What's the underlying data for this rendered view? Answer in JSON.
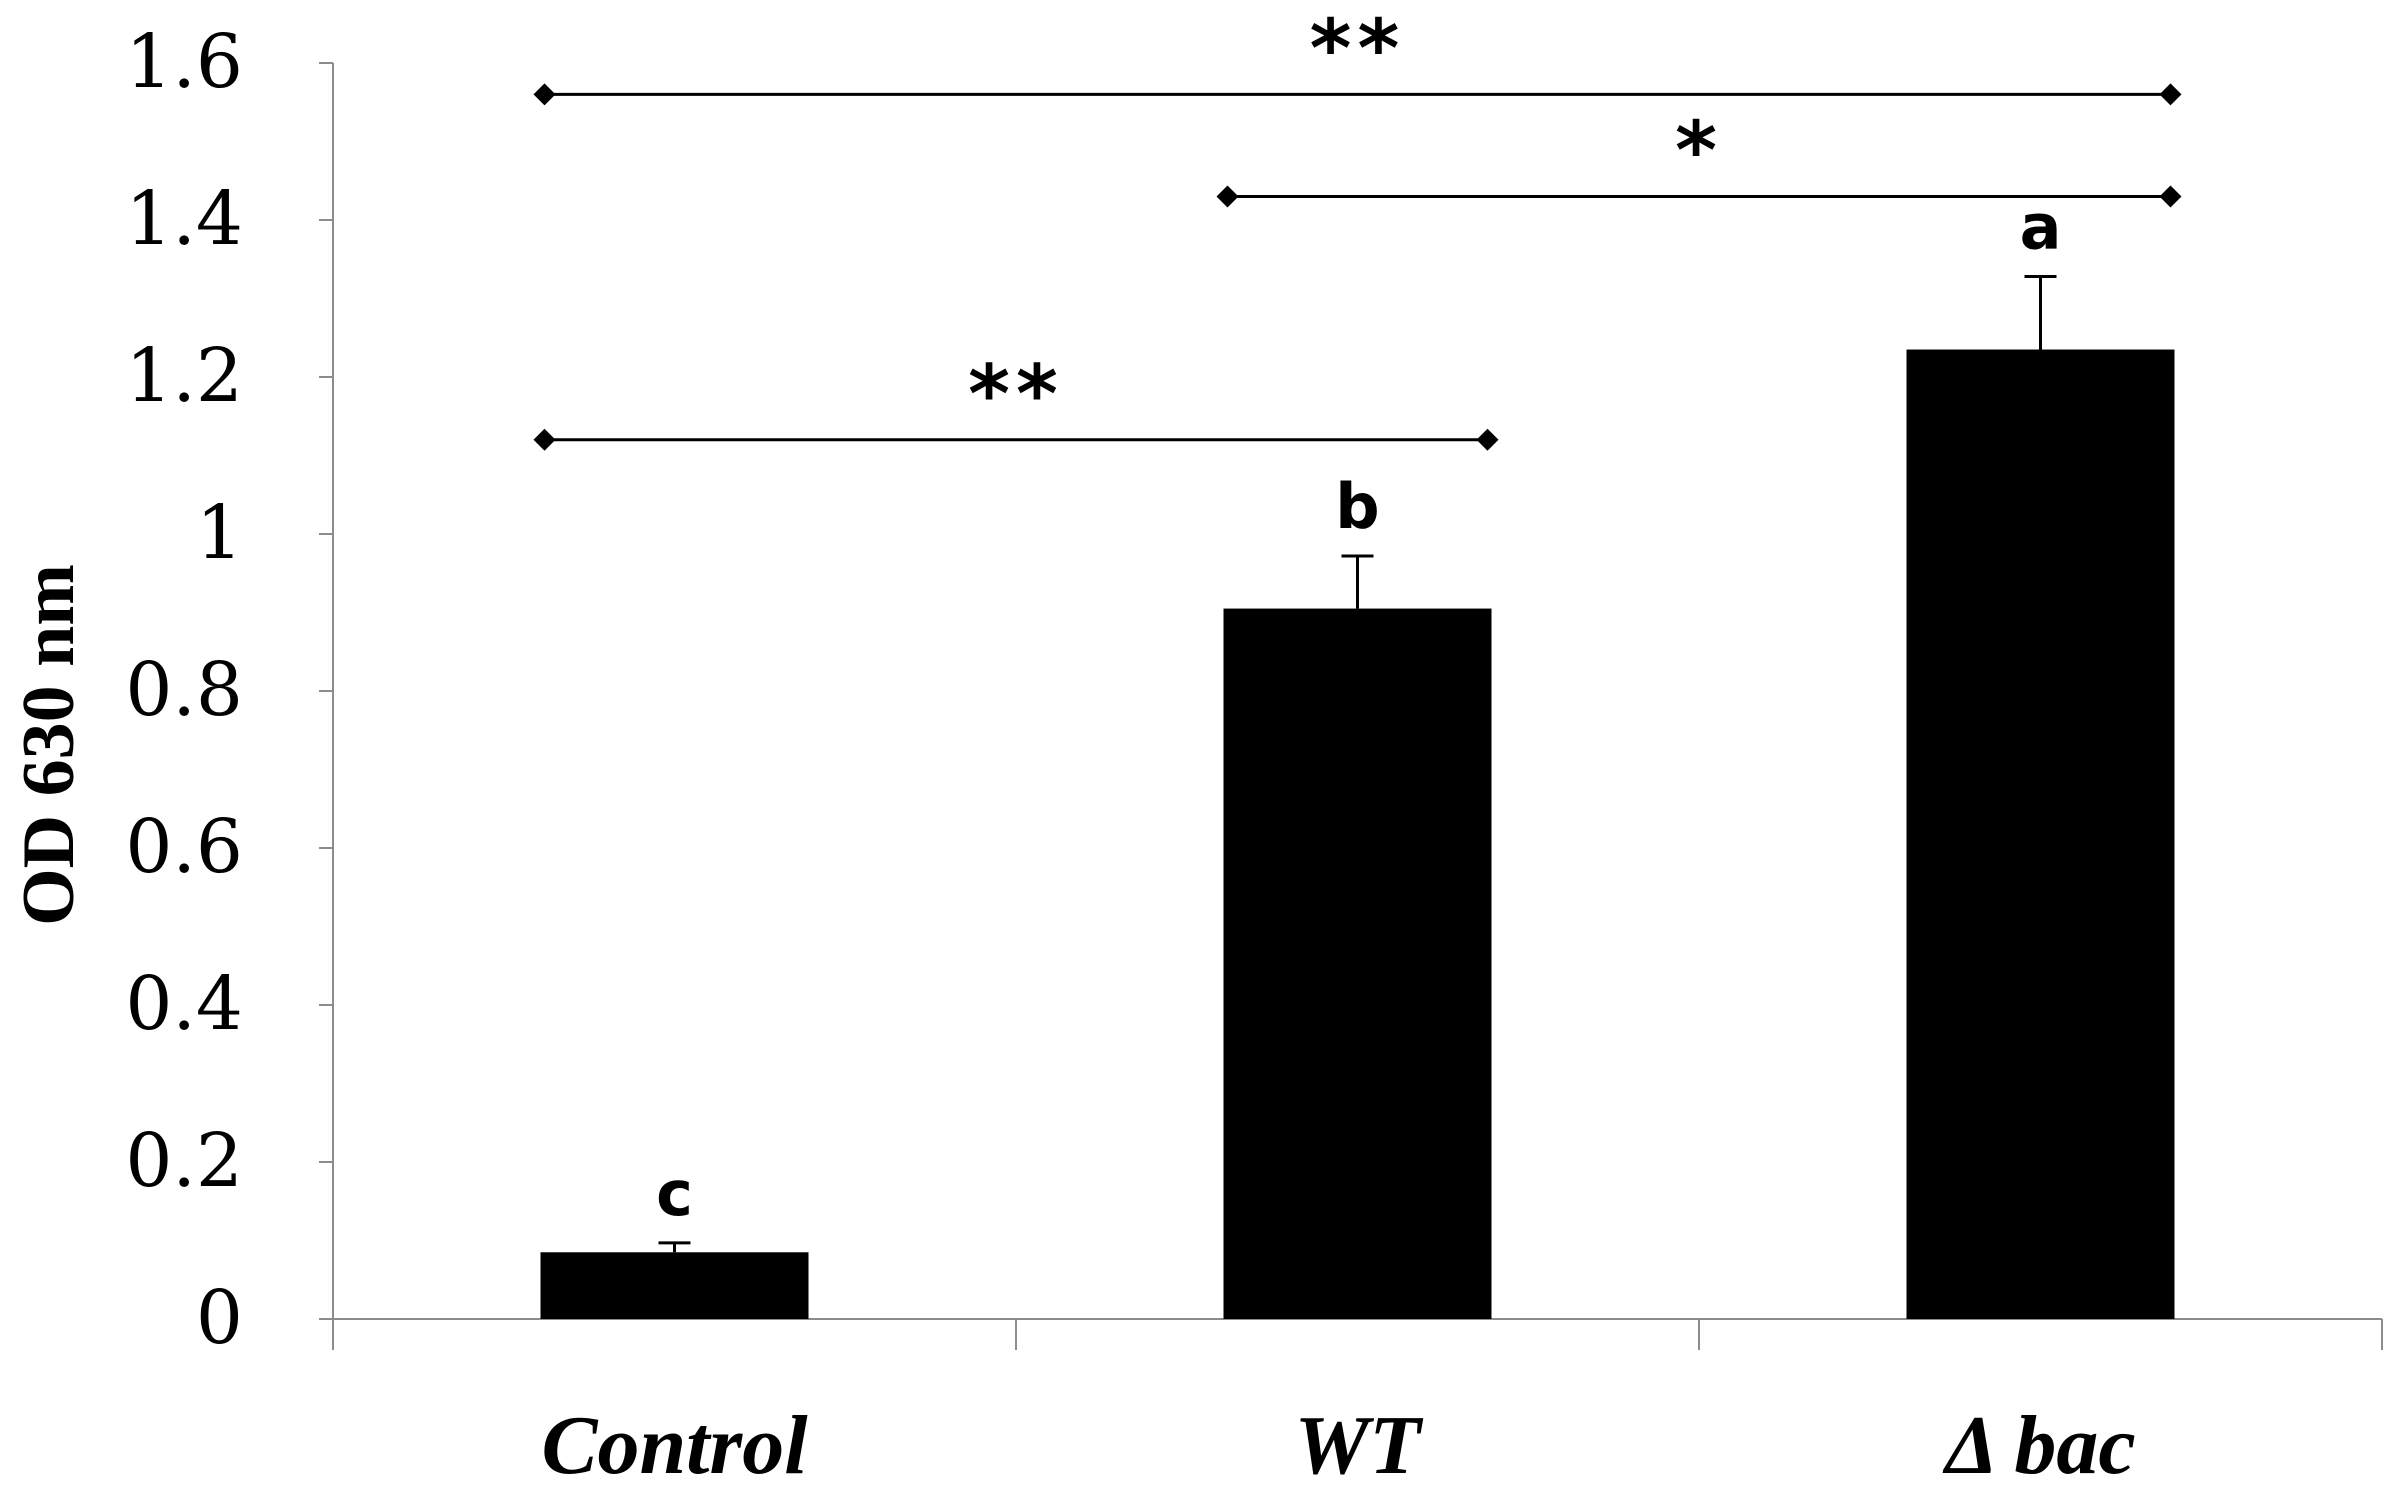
{
  "chart_data": {
    "type": "bar",
    "categories": [
      "Control",
      "WT",
      "Δ bac"
    ],
    "values": [
      0.085,
      0.905,
      1.235
    ],
    "errors": [
      0.012,
      0.067,
      0.093
    ],
    "group_letters": [
      "c",
      "b",
      "a"
    ],
    "ylabel": "OD  630 nm",
    "ylim": [
      0,
      1.6
    ],
    "yticks": [
      "0",
      "0.2",
      "0.4",
      "0.6",
      "0.8",
      "1",
      "1.2",
      "1.4",
      "1.6"
    ],
    "ytick_values": [
      0,
      0.2,
      0.4,
      0.6,
      0.8,
      1.0,
      1.2,
      1.4,
      1.6
    ],
    "grid": false,
    "bar_color": "#000000",
    "significance": [
      {
        "from": 0,
        "to": 2,
        "level": 1.56,
        "label": "**"
      },
      {
        "from": 1,
        "to": 2,
        "level": 1.43,
        "label": "*"
      },
      {
        "from": 0,
        "to": 1,
        "level": 1.12,
        "label": "**"
      }
    ]
  }
}
